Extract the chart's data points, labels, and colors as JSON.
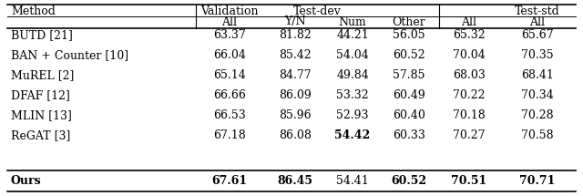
{
  "header_row1": [
    "Method",
    "Validation",
    "Test-dev",
    "Test-std"
  ],
  "header_row2": [
    "",
    "All",
    "Y/N",
    "Num",
    "Other",
    "All",
    "All"
  ],
  "rows": [
    [
      "BUTD [21]",
      "63.37",
      "81.82",
      "44.21",
      "56.05",
      "65.32",
      "65.67"
    ],
    [
      "BAN + Counter [10]",
      "66.04",
      "85.42",
      "54.04",
      "60.52",
      "70.04",
      "70.35"
    ],
    [
      "MuREL [2]",
      "65.14",
      "84.77",
      "49.84",
      "57.85",
      "68.03",
      "68.41"
    ],
    [
      "DFAF [12]",
      "66.66",
      "86.09",
      "53.32",
      "60.49",
      "70.22",
      "70.34"
    ],
    [
      "MLIN [13]",
      "66.53",
      "85.96",
      "52.93",
      "60.40",
      "70.18",
      "70.28"
    ],
    [
      "ReGAT [3]",
      "67.18",
      "86.08",
      "54.42",
      "60.33",
      "70.27",
      "70.58"
    ]
  ],
  "last_row": [
    "Ours",
    "67.61",
    "86.45",
    "54.41",
    "60.52",
    "70.51",
    "70.71"
  ],
  "bold_last": [
    true,
    true,
    true,
    false,
    true,
    true,
    true
  ],
  "bold_regat": [
    false,
    false,
    false,
    true,
    false,
    false,
    false
  ],
  "figsize": [
    6.4,
    2.15
  ],
  "dpi": 100,
  "fontsize": 9.0,
  "bg_color": "#ffffff"
}
